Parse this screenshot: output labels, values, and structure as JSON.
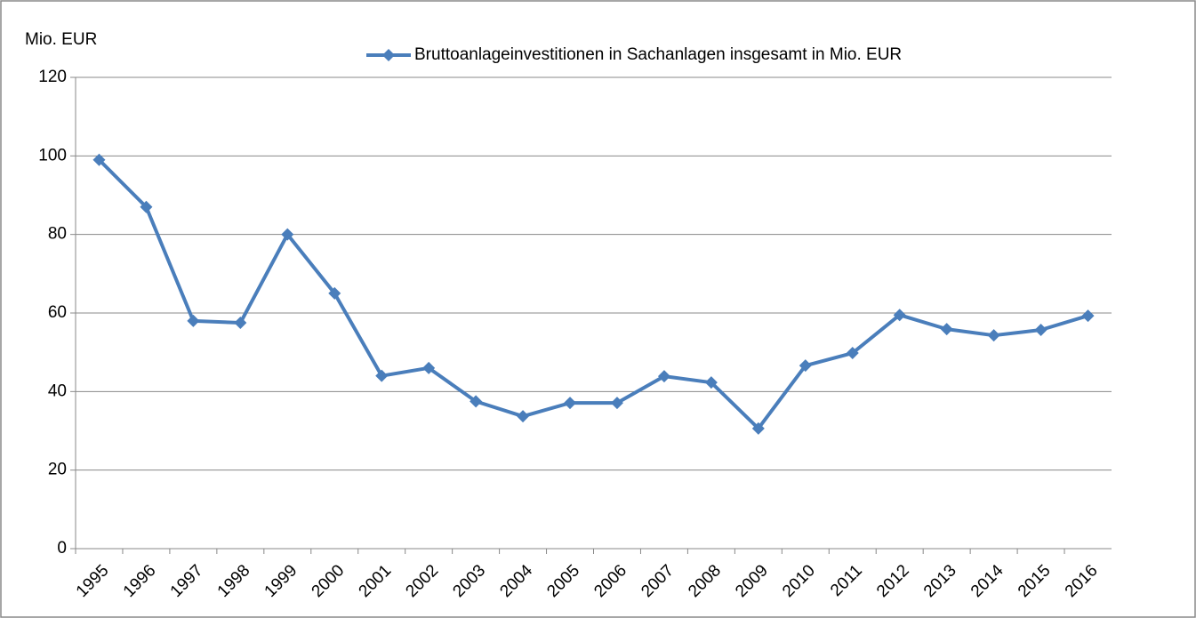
{
  "chart_data": {
    "type": "line",
    "y_axis_label": "Mio. EUR",
    "categories": [
      "1995",
      "1996",
      "1997",
      "1998",
      "1999",
      "2000",
      "2001",
      "2002",
      "2003",
      "2004",
      "2005",
      "2006",
      "2007",
      "2008",
      "2009",
      "2010",
      "2011",
      "2012",
      "2013",
      "2014",
      "2015",
      "2016"
    ],
    "series": [
      {
        "name": "Bruttoanlageinvestitionen in Sachanlagen insgesamt in Mio. EUR",
        "color": "#4a7ebb",
        "values": [
          99,
          87,
          58,
          57.5,
          80,
          65,
          44,
          46,
          37.5,
          33.7,
          37.1,
          37.1,
          43.9,
          42.3,
          30.6,
          46.6,
          49.8,
          59.5,
          55.9,
          54.3,
          55.7,
          59.3
        ]
      }
    ],
    "ylim": [
      0,
      120
    ],
    "yticks": [
      0,
      20,
      40,
      60,
      80,
      100,
      120
    ],
    "grid": true,
    "legend": "top"
  }
}
